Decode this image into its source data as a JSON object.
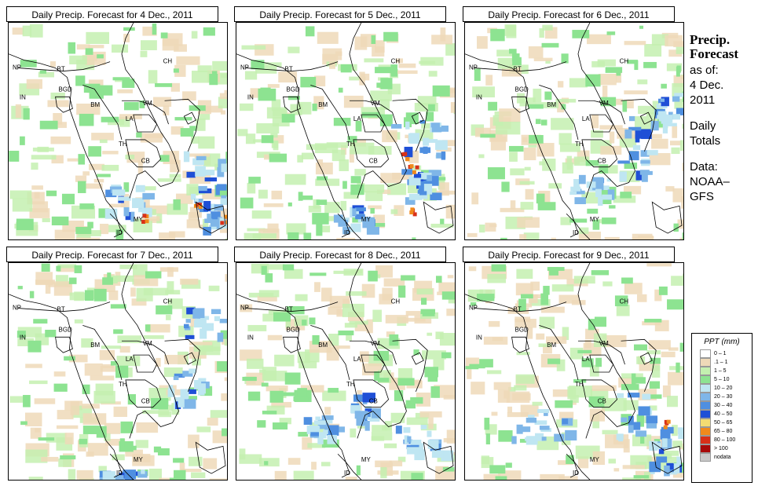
{
  "panels": [
    {
      "title": "Daily Precip. Forecast for  4 Dec., 2011"
    },
    {
      "title": "Daily Precip. Forecast for  5 Dec., 2011"
    },
    {
      "title": "Daily Precip. Forecast for  6 Dec., 2011"
    },
    {
      "title": "Daily Precip. Forecast for  7 Dec., 2011"
    },
    {
      "title": "Daily Precip. Forecast for  8 Dec., 2011"
    },
    {
      "title": "Daily Precip. Forecast for  9 Dec., 2011"
    }
  ],
  "country_labels": [
    "NP",
    "BT",
    "BGD",
    "IN",
    "BM",
    "CH",
    "VM",
    "LA",
    "TH",
    "CB",
    "MY",
    "ID"
  ],
  "sidebar": {
    "line1": "Precip.",
    "line2": "Forecast",
    "line3": "as of:",
    "line4": "4 Dec.",
    "line5": "2011",
    "line6": "Daily",
    "line7": "Totals",
    "line8": "Data:",
    "line9": "NOAA–",
    "line10": "GFS"
  },
  "legend": {
    "title": "PPT (mm)",
    "entries": [
      {
        "label": "0 – 1",
        "color": "#ffffff"
      },
      {
        "label": ".1 – 1",
        "color": "#eed9b8"
      },
      {
        "label": "1 – 5",
        "color": "#c4f0b0"
      },
      {
        "label": "5 – 10",
        "color": "#8de391"
      },
      {
        "label": "10 – 20",
        "color": "#bfe6f2"
      },
      {
        "label": "20 – 30",
        "color": "#7fb6e8"
      },
      {
        "label": "30 – 40",
        "color": "#4f8fe0"
      },
      {
        "label": "40 – 50",
        "color": "#1f4fd6"
      },
      {
        "label": "50 – 65",
        "color": "#f3dc72"
      },
      {
        "label": "65 – 80",
        "color": "#f08a1c"
      },
      {
        "label": "80 – 100",
        "color": "#d83018"
      },
      {
        "label": "> 100",
        "color": "#a80a0a"
      },
      {
        "label": "nodata",
        "color": "#c8c8c8"
      }
    ]
  }
}
